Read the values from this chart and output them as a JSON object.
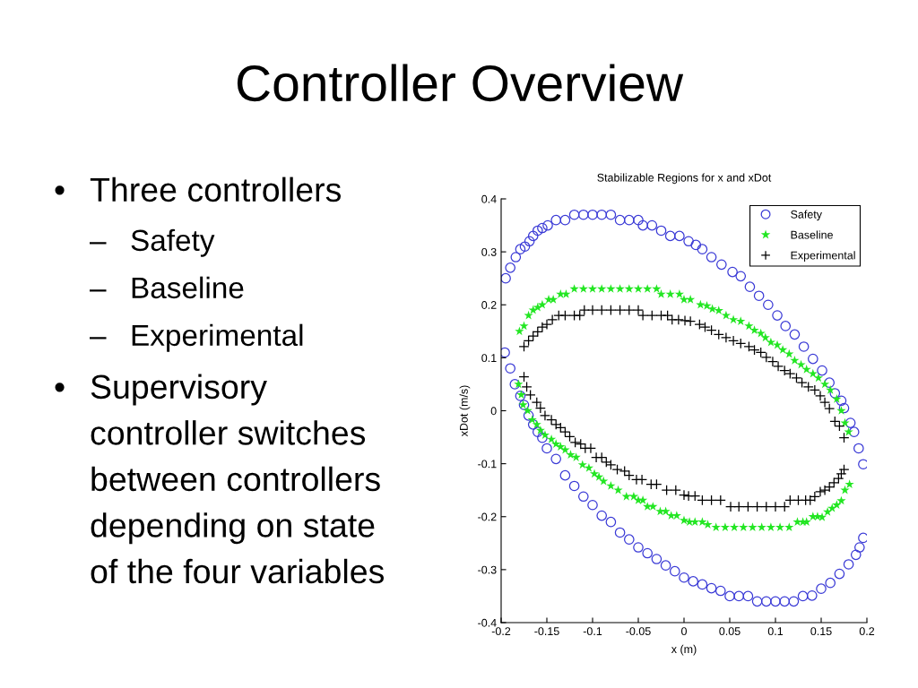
{
  "chart_data": {
    "type": "scatter",
    "title": "Controller Overview",
    "subtitle": "Stabilizable Regions for x and xDot",
    "xlabel": "x (m)",
    "ylabel": "xDot (m/s)",
    "annotations": [
      "• Three controllers",
      "– Safety",
      "– Baseline",
      "– Experimental",
      "• Supervisory controller switches between controllers depending on state of the four variables"
    ],
    "xlim": [
      -0.2,
      0.2
    ],
    "xticks": [
      -0.2,
      -0.15,
      -0.1,
      -0.05,
      0,
      0.05,
      0.1,
      0.15,
      0.2
    ],
    "ylim": [
      -0.4,
      0.4
    ],
    "yticks": [
      -0.4,
      -0.3,
      -0.2,
      -0.1,
      0,
      0.1,
      0.2,
      0.3,
      0.4
    ],
    "legend": "top right",
    "series": [
      {
        "name": "Safety",
        "color": "#3a3ad6",
        "marker": "circle",
        "x": [
          -0.196,
          -0.19,
          -0.185,
          -0.179,
          -0.175,
          -0.17,
          -0.165,
          -0.16,
          -0.155,
          -0.15,
          -0.14,
          -0.13,
          -0.12,
          -0.11,
          -0.1,
          -0.09,
          -0.08,
          -0.07,
          -0.06,
          -0.05,
          -0.04,
          -0.03,
          -0.02,
          -0.01,
          0.0,
          0.01,
          0.02,
          0.03,
          0.04,
          0.05,
          0.06,
          0.07,
          0.08,
          0.09,
          0.1,
          0.11,
          0.12,
          0.13,
          0.14,
          0.15,
          0.16,
          0.17,
          0.18,
          0.188,
          0.192,
          0.196,
          -0.195,
          -0.19,
          -0.184,
          -0.179,
          -0.174,
          -0.169,
          -0.165,
          -0.16,
          -0.155,
          -0.149,
          -0.14,
          -0.13,
          -0.12,
          -0.11,
          -0.1,
          -0.09,
          -0.08,
          -0.07,
          -0.06,
          -0.05,
          -0.045,
          -0.035,
          -0.025,
          -0.015,
          -0.005,
          0.005,
          0.013,
          0.02,
          0.03,
          0.041,
          0.053,
          0.062,
          0.072,
          0.082,
          0.092,
          0.102,
          0.111,
          0.121,
          0.131,
          0.141,
          0.151,
          0.159,
          0.165,
          0.172,
          0.175,
          0.182,
          0.186,
          0.191,
          0.196
        ],
        "values": [
          0.11,
          0.08,
          0.05,
          0.028,
          0.011,
          -0.009,
          -0.026,
          -0.04,
          -0.051,
          -0.071,
          -0.091,
          -0.122,
          -0.142,
          -0.162,
          -0.178,
          -0.198,
          -0.21,
          -0.23,
          -0.243,
          -0.258,
          -0.269,
          -0.28,
          -0.292,
          -0.303,
          -0.315,
          -0.322,
          -0.328,
          -0.335,
          -0.34,
          -0.35,
          -0.35,
          -0.35,
          -0.36,
          -0.36,
          -0.36,
          -0.36,
          -0.36,
          -0.35,
          -0.349,
          -0.336,
          -0.325,
          -0.308,
          -0.29,
          -0.272,
          -0.258,
          -0.24,
          0.25,
          0.27,
          0.29,
          0.305,
          0.31,
          0.32,
          0.33,
          0.34,
          0.345,
          0.35,
          0.36,
          0.36,
          0.37,
          0.37,
          0.37,
          0.37,
          0.37,
          0.36,
          0.36,
          0.36,
          0.35,
          0.35,
          0.34,
          0.33,
          0.33,
          0.32,
          0.313,
          0.305,
          0.29,
          0.276,
          0.262,
          0.254,
          0.234,
          0.217,
          0.2,
          0.18,
          0.16,
          0.144,
          0.121,
          0.098,
          0.076,
          0.053,
          0.033,
          0.019,
          0.005,
          -0.023,
          -0.04,
          -0.071,
          -0.101
        ]
      },
      {
        "name": "Baseline",
        "color": "#22e622",
        "marker": "star",
        "x": [
          -0.18,
          -0.175,
          -0.17,
          -0.165,
          -0.16,
          -0.155,
          -0.148,
          -0.143,
          -0.135,
          -0.129,
          -0.12,
          -0.11,
          -0.1,
          -0.09,
          -0.08,
          -0.07,
          -0.06,
          -0.05,
          -0.04,
          -0.03,
          -0.025,
          -0.015,
          -0.005,
          0.0,
          0.007,
          0.018,
          0.025,
          0.031,
          0.038,
          0.046,
          0.054,
          0.062,
          0.071,
          0.077,
          0.084,
          0.089,
          0.095,
          0.102,
          0.108,
          0.115,
          0.121,
          0.128,
          0.134,
          0.141,
          0.147,
          0.154,
          0.16,
          0.167,
          0.172,
          0.176,
          0.18,
          -0.181,
          -0.178,
          -0.176,
          -0.171,
          -0.166,
          -0.161,
          -0.157,
          -0.152,
          -0.145,
          -0.14,
          -0.135,
          -0.13,
          -0.124,
          -0.118,
          -0.111,
          -0.104,
          -0.098,
          -0.093,
          -0.088,
          -0.08,
          -0.072,
          -0.063,
          -0.055,
          -0.05,
          -0.045,
          -0.04,
          -0.034,
          -0.026,
          -0.02,
          -0.014,
          -0.008,
          0.0,
          0.006,
          0.012,
          0.02,
          0.026,
          0.035,
          0.045,
          0.055,
          0.065,
          0.075,
          0.085,
          0.095,
          0.105,
          0.115,
          0.124,
          0.13,
          0.134,
          0.141,
          0.146,
          0.151,
          0.157,
          0.162,
          0.167,
          0.172,
          0.176,
          0.181
        ],
        "values": [
          0.15,
          0.16,
          0.18,
          0.19,
          0.195,
          0.2,
          0.21,
          0.21,
          0.22,
          0.22,
          0.23,
          0.23,
          0.23,
          0.23,
          0.23,
          0.23,
          0.23,
          0.23,
          0.23,
          0.23,
          0.22,
          0.22,
          0.22,
          0.21,
          0.21,
          0.2,
          0.198,
          0.192,
          0.189,
          0.18,
          0.172,
          0.169,
          0.16,
          0.152,
          0.146,
          0.138,
          0.129,
          0.124,
          0.115,
          0.107,
          0.095,
          0.087,
          0.078,
          0.07,
          0.062,
          0.05,
          0.039,
          0.022,
          0.0,
          -0.023,
          -0.04,
          0.05,
          0.03,
          0.011,
          0.0,
          -0.017,
          -0.026,
          -0.037,
          -0.046,
          -0.054,
          -0.063,
          -0.068,
          -0.074,
          -0.083,
          -0.088,
          -0.102,
          -0.108,
          -0.119,
          -0.125,
          -0.133,
          -0.142,
          -0.15,
          -0.162,
          -0.162,
          -0.169,
          -0.169,
          -0.181,
          -0.181,
          -0.19,
          -0.19,
          -0.198,
          -0.198,
          -0.207,
          -0.21,
          -0.21,
          -0.21,
          -0.215,
          -0.22,
          -0.22,
          -0.22,
          -0.22,
          -0.22,
          -0.22,
          -0.22,
          -0.22,
          -0.22,
          -0.21,
          -0.21,
          -0.21,
          -0.2,
          -0.2,
          -0.201,
          -0.191,
          -0.184,
          -0.178,
          -0.17,
          -0.15,
          -0.139
        ]
      },
      {
        "name": "Experimental",
        "color": "#000000",
        "marker": "cross",
        "x": [
          -0.175,
          -0.17,
          -0.165,
          -0.16,
          -0.155,
          -0.15,
          -0.144,
          -0.137,
          -0.13,
          -0.12,
          -0.114,
          -0.109,
          -0.1,
          -0.09,
          -0.08,
          -0.07,
          -0.06,
          -0.05,
          -0.045,
          -0.035,
          -0.025,
          -0.018,
          -0.013,
          -0.006,
          0.001,
          0.007,
          0.017,
          0.023,
          0.03,
          0.038,
          0.046,
          0.054,
          0.062,
          0.071,
          0.077,
          0.084,
          0.09,
          0.097,
          0.103,
          0.11,
          0.116,
          0.123,
          0.129,
          0.136,
          0.143,
          0.149,
          0.154,
          0.159,
          0.165,
          0.17,
          0.175,
          -0.175,
          -0.172,
          -0.168,
          -0.161,
          -0.157,
          -0.152,
          -0.145,
          -0.14,
          -0.135,
          -0.13,
          -0.125,
          -0.119,
          -0.113,
          -0.108,
          -0.102,
          -0.096,
          -0.09,
          -0.085,
          -0.08,
          -0.073,
          -0.065,
          -0.06,
          -0.052,
          -0.046,
          -0.036,
          -0.03,
          -0.019,
          -0.009,
          0.0,
          0.005,
          0.012,
          0.02,
          0.03,
          0.04,
          0.051,
          0.06,
          0.07,
          0.08,
          0.09,
          0.1,
          0.11,
          0.116,
          0.125,
          0.133,
          0.138,
          0.143,
          0.149,
          0.154,
          0.159,
          0.164,
          0.169,
          0.172,
          0.175
        ],
        "values": [
          0.121,
          0.132,
          0.141,
          0.149,
          0.158,
          0.163,
          0.172,
          0.18,
          0.18,
          0.18,
          0.18,
          0.19,
          0.19,
          0.19,
          0.19,
          0.19,
          0.19,
          0.19,
          0.18,
          0.18,
          0.18,
          0.18,
          0.172,
          0.172,
          0.17,
          0.169,
          0.163,
          0.158,
          0.152,
          0.144,
          0.138,
          0.132,
          0.127,
          0.121,
          0.115,
          0.11,
          0.101,
          0.093,
          0.084,
          0.076,
          0.07,
          0.062,
          0.053,
          0.045,
          0.039,
          0.028,
          0.016,
          0.004,
          -0.02,
          -0.029,
          -0.051,
          0.064,
          0.045,
          0.03,
          0.016,
          0.005,
          -0.009,
          -0.017,
          -0.026,
          -0.032,
          -0.04,
          -0.049,
          -0.06,
          -0.063,
          -0.071,
          -0.071,
          -0.088,
          -0.088,
          -0.097,
          -0.102,
          -0.111,
          -0.114,
          -0.122,
          -0.13,
          -0.13,
          -0.139,
          -0.139,
          -0.15,
          -0.15,
          -0.159,
          -0.161,
          -0.161,
          -0.169,
          -0.169,
          -0.169,
          -0.181,
          -0.181,
          -0.181,
          -0.181,
          -0.181,
          -0.181,
          -0.181,
          -0.169,
          -0.169,
          -0.169,
          -0.169,
          -0.162,
          -0.153,
          -0.15,
          -0.144,
          -0.136,
          -0.128,
          -0.119,
          -0.111
        ]
      }
    ]
  }
}
